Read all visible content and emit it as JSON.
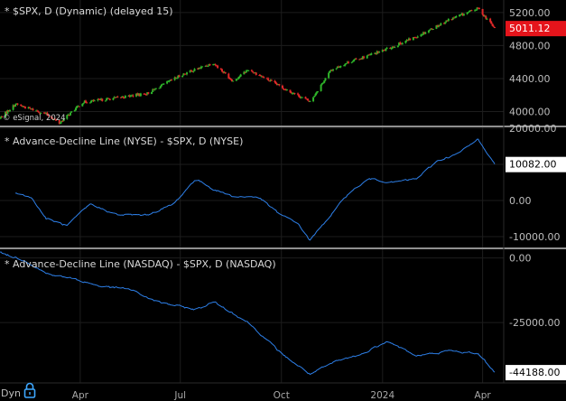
{
  "watermark": "© eSignal, 2024",
  "footer": {
    "label": "Dyn",
    "icon": "lock-icon"
  },
  "colors": {
    "background": "#000000",
    "up_candle": "#2fb52a",
    "down_candle": "#e02828",
    "line": "#2d7fe8",
    "grid": "#1d1d1d",
    "divider": "#8f8f8f",
    "badge_red": "#e5141b",
    "badge_white": "#ffffff"
  },
  "x_axis": {
    "labels": [
      "Apr",
      "Jul",
      "Oct",
      "2024",
      "Apr"
    ],
    "label_dates": [
      "2023-04-01",
      "2023-07-01",
      "2023-10-01",
      "2024-01-01",
      "2024-04-01"
    ],
    "range": [
      "2023-01-18",
      "2024-04-12"
    ]
  },
  "chart_data": [
    {
      "type": "candlestick",
      "title": "* $SPX, D (Dynamic) (delayed 15)",
      "yticks": [
        "5200.00",
        "4800.00",
        "4400.00",
        "4000.00"
      ],
      "ylim": [
        3830,
        5330
      ],
      "last_value": "5011.12",
      "series": [
        {
          "name": "$SPX",
          "x": [
            "2023-01-18",
            "2023-02-01",
            "2023-03-01",
            "2023-03-13",
            "2023-04-03",
            "2023-05-01",
            "2023-06-01",
            "2023-07-03",
            "2023-07-31",
            "2023-08-18",
            "2023-09-01",
            "2023-10-02",
            "2023-10-27",
            "2023-11-15",
            "2023-12-01",
            "2024-01-02",
            "2024-02-01",
            "2024-03-01",
            "2024-03-28",
            "2024-04-12"
          ],
          "values": [
            3920,
            4090,
            3970,
            3860,
            4110,
            4160,
            4220,
            4450,
            4590,
            4370,
            4510,
            4290,
            4120,
            4500,
            4600,
            4740,
            4910,
            5110,
            5250,
            5011
          ]
        }
      ]
    },
    {
      "type": "line",
      "title": "* Advance-Decline Line (NYSE) - $SPX, D (NYSE)",
      "yticks": [
        "20000.00",
        "10000.00",
        "0.00",
        "-10000.00"
      ],
      "ylim": [
        -13000,
        20000
      ],
      "last_value": "10082.00",
      "series": [
        {
          "name": "Advance-Decline Line (NYSE)",
          "x": [
            "2023-02-01",
            "2023-02-15",
            "2023-03-01",
            "2023-03-20",
            "2023-04-10",
            "2023-05-05",
            "2023-06-01",
            "2023-06-25",
            "2023-07-15",
            "2023-08-01",
            "2023-08-20",
            "2023-09-10",
            "2023-09-30",
            "2023-10-15",
            "2023-10-27",
            "2023-11-15",
            "2023-12-01",
            "2023-12-20",
            "2024-01-10",
            "2024-02-01",
            "2024-02-20",
            "2024-03-10",
            "2024-03-28",
            "2024-04-12"
          ],
          "values": [
            2000,
            1000,
            -5000,
            -7000,
            -1000,
            -4000,
            -4000,
            -1000,
            6000,
            3000,
            1000,
            1000,
            -4000,
            -6000,
            -11000,
            -4000,
            2000,
            6000,
            5000,
            6000,
            11000,
            13000,
            17000,
            10082
          ]
        }
      ]
    },
    {
      "type": "line",
      "title": "* Advance-Decline Line (NASDAQ) - $SPX, D (NASDAQ)",
      "yticks": [
        "0.00",
        "-25000.00",
        "-44188.00"
      ],
      "ylim": [
        -48000,
        3000
      ],
      "last_value": "-44188.00",
      "series": [
        {
          "name": "Advance-Decline Line (NASDAQ)",
          "x": [
            "2023-01-18",
            "2023-02-10",
            "2023-03-01",
            "2023-03-25",
            "2023-04-20",
            "2023-05-15",
            "2023-06-10",
            "2023-07-15",
            "2023-08-01",
            "2023-09-01",
            "2023-10-01",
            "2023-10-27",
            "2023-11-20",
            "2023-12-15",
            "2024-01-05",
            "2024-02-01",
            "2024-03-01",
            "2024-03-28",
            "2024-04-12"
          ],
          "values": [
            2000,
            -1000,
            -6000,
            -8000,
            -11000,
            -12000,
            -17000,
            -20000,
            -17000,
            -25000,
            -37000,
            -45000,
            -40000,
            -37000,
            -32000,
            -38000,
            -36000,
            -37000,
            -44188
          ]
        }
      ]
    }
  ]
}
